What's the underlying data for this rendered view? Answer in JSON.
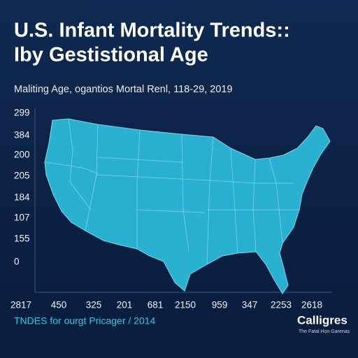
{
  "header": {
    "title_lines": [
      "U.S. Infant Mortality Trends::",
      "Iby Gestistional Age"
    ],
    "subtitle": "Maliting Age, ogantios Mortal Renl, 118-29, 2019"
  },
  "y_labels": [
    "299",
    "384",
    "200",
    "205",
    "184",
    "107",
    "155",
    "0"
  ],
  "x_labels": [
    "2817",
    "450",
    "325",
    "201",
    "681",
    "2150",
    "959",
    "347",
    "2253",
    "2618"
  ],
  "footer": {
    "source": "TNDES for ourgt Pricager / 2014",
    "brand": "Calligres",
    "brand_sub": "The Fatal Hon Garenas"
  }
}
